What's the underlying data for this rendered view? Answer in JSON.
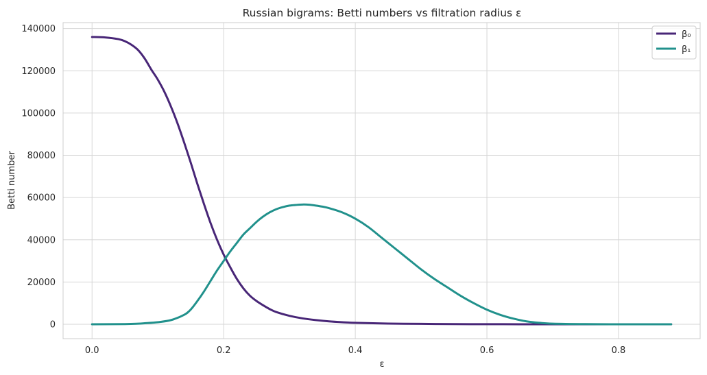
{
  "chart_data": {
    "type": "line",
    "title": "Russian bigrams: Betti numbers vs filtration radius ε",
    "xlabel": "ε",
    "ylabel": "Betti number",
    "xlim": [
      -0.044,
      0.924
    ],
    "ylim": [
      -6800,
      142800
    ],
    "xticks": [
      0.0,
      0.2,
      0.4,
      0.6,
      0.8
    ],
    "xtick_labels": [
      "0.0",
      "0.2",
      "0.4",
      "0.6",
      "0.8"
    ],
    "yticks": [
      0,
      20000,
      40000,
      60000,
      80000,
      100000,
      120000,
      140000
    ],
    "ytick_labels": [
      "0",
      "20000",
      "40000",
      "60000",
      "80000",
      "100000",
      "120000",
      "140000"
    ],
    "grid": true,
    "legend_position": "top-right",
    "series": [
      {
        "name": "β₀",
        "color": "#482677",
        "x": [
          0,
          0.02,
          0.04,
          0.05,
          0.06,
          0.07,
          0.08,
          0.09,
          0.1,
          0.11,
          0.12,
          0.13,
          0.14,
          0.15,
          0.16,
          0.17,
          0.18,
          0.19,
          0.2,
          0.21,
          0.22,
          0.23,
          0.24,
          0.25,
          0.26,
          0.27,
          0.28,
          0.3,
          0.32,
          0.34,
          0.36,
          0.38,
          0.4,
          0.45,
          0.5,
          0.55,
          0.6,
          0.65,
          0.7,
          0.8,
          0.88
        ],
        "y": [
          136000,
          135800,
          135000,
          134000,
          132300,
          129800,
          125800,
          120600,
          115800,
          110000,
          103000,
          95000,
          86000,
          76500,
          66500,
          57000,
          48000,
          40000,
          33000,
          27000,
          21500,
          17000,
          13500,
          11000,
          9000,
          7200,
          5800,
          4000,
          2800,
          2000,
          1400,
          1000,
          700,
          350,
          200,
          100,
          50,
          30,
          15,
          5,
          0
        ]
      },
      {
        "name": "β₁",
        "color": "#21918c",
        "x": [
          0,
          0.05,
          0.07,
          0.08,
          0.1,
          0.12,
          0.14,
          0.15,
          0.16,
          0.17,
          0.18,
          0.19,
          0.2,
          0.21,
          0.22,
          0.23,
          0.24,
          0.25,
          0.26,
          0.27,
          0.28,
          0.29,
          0.3,
          0.31,
          0.32,
          0.33,
          0.34,
          0.35,
          0.36,
          0.38,
          0.4,
          0.42,
          0.44,
          0.46,
          0.48,
          0.5,
          0.52,
          0.54,
          0.56,
          0.58,
          0.6,
          0.62,
          0.64,
          0.66,
          0.68,
          0.7,
          0.75,
          0.8,
          0.88
        ],
        "y": [
          0,
          100,
          300,
          500,
          1000,
          2000,
          4500,
          7000,
          11000,
          15500,
          20500,
          25500,
          30000,
          34500,
          38500,
          42500,
          45500,
          48500,
          51000,
          53000,
          54500,
          55500,
          56200,
          56500,
          56700,
          56600,
          56200,
          55700,
          55000,
          53000,
          50000,
          46000,
          41000,
          36000,
          31000,
          26000,
          21500,
          17500,
          13500,
          10000,
          6900,
          4500,
          2700,
          1400,
          700,
          300,
          80,
          20,
          0
        ]
      }
    ]
  }
}
